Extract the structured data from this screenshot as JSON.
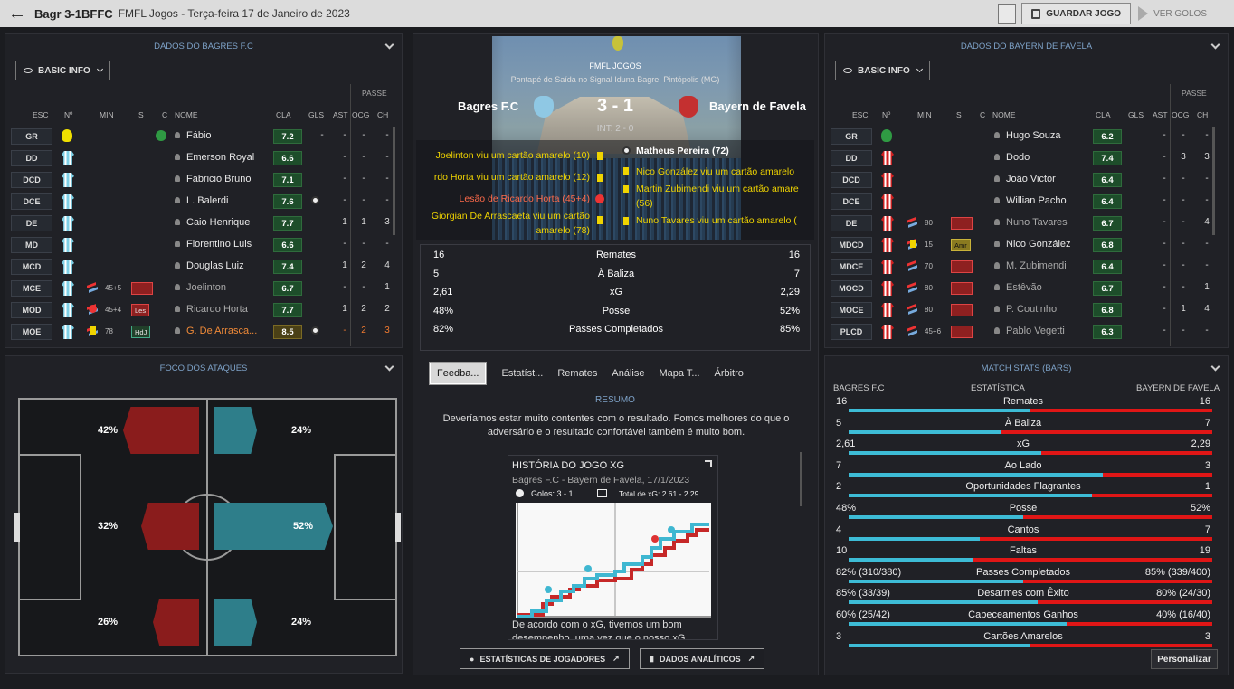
{
  "header": {
    "title": "Bagr 3-1BFFC",
    "subtitle": "FMFL Jogos - Terça-feira 17 de Janeiro de 2023",
    "save_label": "GUARDAR JOGO",
    "goals_label": "VER GOLOS"
  },
  "left_panel": {
    "title": "DADOS DO BAGRES F.C",
    "dropdown": "BASIC INFO",
    "passe": "PASSE",
    "cols": {
      "esc": "ESC",
      "n": "Nº",
      "min": "MIN",
      "s": "S",
      "c": "C",
      "nome": "NOME",
      "cla": "CLA",
      "gls": "GLS",
      "ast": "AST",
      "ocg": "OCG",
      "ch": "CH"
    },
    "players": [
      {
        "pos": "GR",
        "name": "Fábio",
        "rating": "7.2",
        "gls": "-",
        "ast": "-",
        "ocg": "-",
        "ch": "-"
      },
      {
        "pos": "DD",
        "name": "Emerson Royal",
        "rating": "6.6",
        "gls": "",
        "ast": "-",
        "ocg": "-",
        "ch": "-"
      },
      {
        "pos": "DCD",
        "name": "Fabricio Bruno",
        "rating": "7.1",
        "gls": "",
        "ast": "-",
        "ocg": "-",
        "ch": "-"
      },
      {
        "pos": "DCE",
        "name": "L. Balerdi",
        "rating": "7.6",
        "gls": "",
        "ast": "-",
        "ocg": "-",
        "ch": "-"
      },
      {
        "pos": "DE",
        "name": "Caio Henrique",
        "rating": "7.7",
        "gls": "",
        "ast": "1",
        "ocg": "1",
        "ch": "3"
      },
      {
        "pos": "MD",
        "name": "Florentino Luis",
        "rating": "6.6",
        "gls": "",
        "ast": "-",
        "ocg": "-",
        "ch": "-"
      },
      {
        "pos": "MCD",
        "name": "Douglas Luiz",
        "rating": "7.4",
        "gls": "",
        "ast": "1",
        "ocg": "2",
        "ch": "4"
      },
      {
        "pos": "MCE",
        "name": "Joelinton",
        "rating": "6.7",
        "min": "45+5",
        "gls": "",
        "ast": "-",
        "ocg": "-",
        "ch": "1"
      },
      {
        "pos": "MOD",
        "name": "Ricardo Horta",
        "rating": "7.7",
        "min": "45+4",
        "tag": "Les",
        "gls": "",
        "ast": "1",
        "ocg": "2",
        "ch": "2"
      },
      {
        "pos": "MOE",
        "name": "G. De Arrasca...",
        "rating": "8.5",
        "min": "78",
        "tag": "HdJ",
        "gls": "",
        "ast": "-",
        "ocg": "2",
        "ch": "3"
      }
    ]
  },
  "attack_panel": {
    "title": "FOCO DOS ATAQUES",
    "home": [
      "42%",
      "32%",
      "26%"
    ],
    "away": [
      "24%",
      "52%",
      "24%"
    ]
  },
  "match": {
    "competition": "FMFL JOGOS",
    "venue": "Pontapé de Saída no Signal Iduna Bagre, Pintópolis (MG)",
    "home": "Bagres F.C",
    "away": "Bayern de Favela",
    "score": "3 - 1",
    "ht": "INT: 2 - 0",
    "events_home": [
      "Joelinton viu um cartão amarelo (10)",
      "rdo Horta viu um cartão amarelo (12)",
      "Lesão de Ricardo Horta (45+4)",
      "Giorgian De Arrascaeta viu um cartão",
      "amarelo (78)"
    ],
    "events_away": [
      "Matheus Pereira (72)",
      "Nico González viu um cartão amarelo",
      "Martin Zubimendi viu um cartão amare",
      "(56)",
      "Nuno Tavares viu um cartão amarelo ("
    ],
    "stats": [
      {
        "h": "16",
        "l": "Remates",
        "a": "16"
      },
      {
        "h": "5",
        "l": "À Baliza",
        "a": "7"
      },
      {
        "h": "2,61",
        "l": "xG",
        "a": "2,29"
      },
      {
        "h": "48%",
        "l": "Posse",
        "a": "52%"
      },
      {
        "h": "82%",
        "l": "Passes Completados",
        "a": "85%"
      }
    ]
  },
  "tabs": [
    "Feedba...",
    "Estatíst...",
    "Remates",
    "Análise",
    "Mapa T...",
    "Árbitro"
  ],
  "summary": {
    "title": "RESUMO",
    "text": "Deveríamos estar muito contentes com o resultado. Fomos melhores do que o adversário e o resultado confortável também é muito bom."
  },
  "xg": {
    "title": "HISTÓRIA DO JOGO XG",
    "sub": "Bagres F.C - Bayern de Favela, 17/1/2023",
    "goals": "Golos: 3 - 1",
    "total": "Total de xG: 2.61 - 2.29",
    "note": "De acordo com o xG, tivemos um bom",
    "note2": "desempenho, uma vez que o nosso xG"
  },
  "buttons": {
    "players": "ESTATÍSTICAS DE JOGADORES",
    "analytics": "DADOS ANALÍTICOS"
  },
  "right_panel": {
    "title": "DADOS DO BAYERN DE FAVELA",
    "dropdown": "BASIC INFO",
    "passe": "PASSE",
    "players": [
      {
        "pos": "GR",
        "name": "Hugo Souza",
        "rating": "6.2",
        "ast": "-",
        "ocg": "-",
        "ch": "-"
      },
      {
        "pos": "DD",
        "name": "Dodo",
        "rating": "7.4",
        "ast": "-",
        "ocg": "3",
        "ch": "3"
      },
      {
        "pos": "DCD",
        "name": "João Victor",
        "rating": "6.4",
        "ast": "-",
        "ocg": "-",
        "ch": "-"
      },
      {
        "pos": "DCE",
        "name": "Willian Pacho",
        "rating": "6.4",
        "ast": "-",
        "ocg": "-",
        "ch": "-"
      },
      {
        "pos": "DE",
        "name": "Nuno Tavares",
        "rating": "6.7",
        "min": "80",
        "ast": "-",
        "ocg": "-",
        "ch": "4"
      },
      {
        "pos": "MDCD",
        "name": "Nico González",
        "rating": "6.8",
        "min": "15",
        "tag": "Amr",
        "ast": "-",
        "ocg": "-",
        "ch": "-"
      },
      {
        "pos": "MDCE",
        "name": "M. Zubimendi",
        "rating": "6.4",
        "min": "70",
        "ast": "-",
        "ocg": "-",
        "ch": "-"
      },
      {
        "pos": "MOCD",
        "name": "Estêvão",
        "rating": "6.7",
        "min": "80",
        "ast": "-",
        "ocg": "-",
        "ch": "1"
      },
      {
        "pos": "MOCE",
        "name": "P. Coutinho",
        "rating": "6.8",
        "min": "80",
        "ast": "-",
        "ocg": "1",
        "ch": "4"
      },
      {
        "pos": "PLCD",
        "name": "Pablo Vegetti",
        "rating": "6.3",
        "min": "45+6",
        "ast": "-",
        "ocg": "-",
        "ch": "-"
      }
    ]
  },
  "match_stats": {
    "title": "MATCH STATS (BARS)",
    "home": "BAGRES F.C",
    "mid": "ESTATÍSTICA",
    "away": "BAYERN DE FAVELA",
    "button": "Personalizar",
    "rows": [
      {
        "h": "16",
        "l": "Remates",
        "a": "16",
        "hv": 0.5
      },
      {
        "h": "5",
        "l": "À Baliza",
        "a": "7",
        "hv": 0.42
      },
      {
        "h": "2,61",
        "l": "xG",
        "a": "2,29",
        "hv": 0.53
      },
      {
        "h": "7",
        "l": "Ao Lado",
        "a": "3",
        "hv": 0.7
      },
      {
        "h": "2",
        "l": "Oportunidades Flagrantes",
        "a": "1",
        "hv": 0.67
      },
      {
        "h": "48%",
        "l": "Posse",
        "a": "52%",
        "hv": 0.48
      },
      {
        "h": "4",
        "l": "Cantos",
        "a": "7",
        "hv": 0.36
      },
      {
        "h": "10",
        "l": "Faltas",
        "a": "19",
        "hv": 0.34
      },
      {
        "h": "82% (310/380)",
        "l": "Passes Completados",
        "a": "85% (339/400)",
        "hv": 0.48
      },
      {
        "h": "85% (33/39)",
        "l": "Desarmes com Êxito",
        "a": "80% (24/30)",
        "hv": 0.52
      },
      {
        "h": "60% (25/42)",
        "l": "Cabeceamentos Ganhos",
        "a": "40% (16/40)",
        "hv": 0.6
      },
      {
        "h": "3",
        "l": "Cartões Amarelos",
        "a": "3",
        "hv": 0.5
      }
    ]
  }
}
